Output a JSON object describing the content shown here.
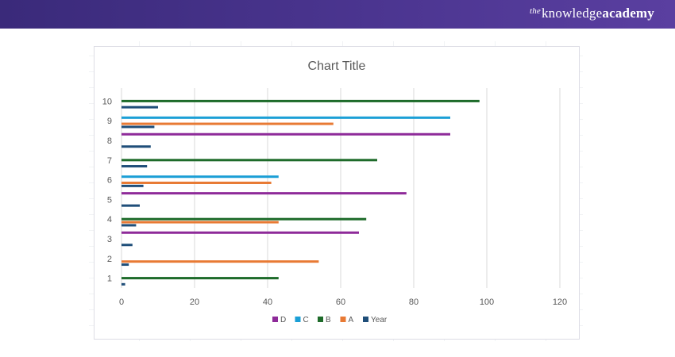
{
  "brand": {
    "the": "the",
    "knowledge": "knowledge",
    "academy": "academy"
  },
  "colors": {
    "D": "#8e2a99",
    "C": "#1b9fd6",
    "B": "#1e6b2a",
    "A": "#e87a34",
    "Year": "#1f4e79",
    "grid": "#d9d9d9",
    "axis_text": "#595959",
    "banner": "#4b3590"
  },
  "chart_data": {
    "type": "bar",
    "orientation": "horizontal",
    "title": "Chart Title",
    "xlabel": "",
    "ylabel": "",
    "categories": [
      "1",
      "2",
      "3",
      "4",
      "5",
      "6",
      "7",
      "8",
      "9",
      "10"
    ],
    "xlim": [
      0,
      120
    ],
    "xticks": [
      0,
      20,
      40,
      60,
      80,
      100,
      120
    ],
    "grid": true,
    "legend_position": "bottom",
    "series": [
      {
        "name": "Year",
        "values": [
          1,
          2,
          3,
          4,
          5,
          6,
          7,
          8,
          9,
          10
        ]
      },
      {
        "name": "A",
        "values": [
          0,
          54,
          0,
          43,
          0,
          41,
          0,
          0,
          58,
          0
        ]
      },
      {
        "name": "B",
        "values": [
          43,
          0,
          0,
          67,
          0,
          0,
          70,
          0,
          0,
          98
        ]
      },
      {
        "name": "C",
        "values": [
          0,
          0,
          0,
          0,
          0,
          43,
          0,
          0,
          90,
          0
        ]
      },
      {
        "name": "D",
        "values": [
          0,
          0,
          65,
          0,
          78,
          0,
          0,
          90,
          0,
          0
        ]
      }
    ],
    "legend_order": [
      "D",
      "C",
      "B",
      "A",
      "Year"
    ]
  }
}
